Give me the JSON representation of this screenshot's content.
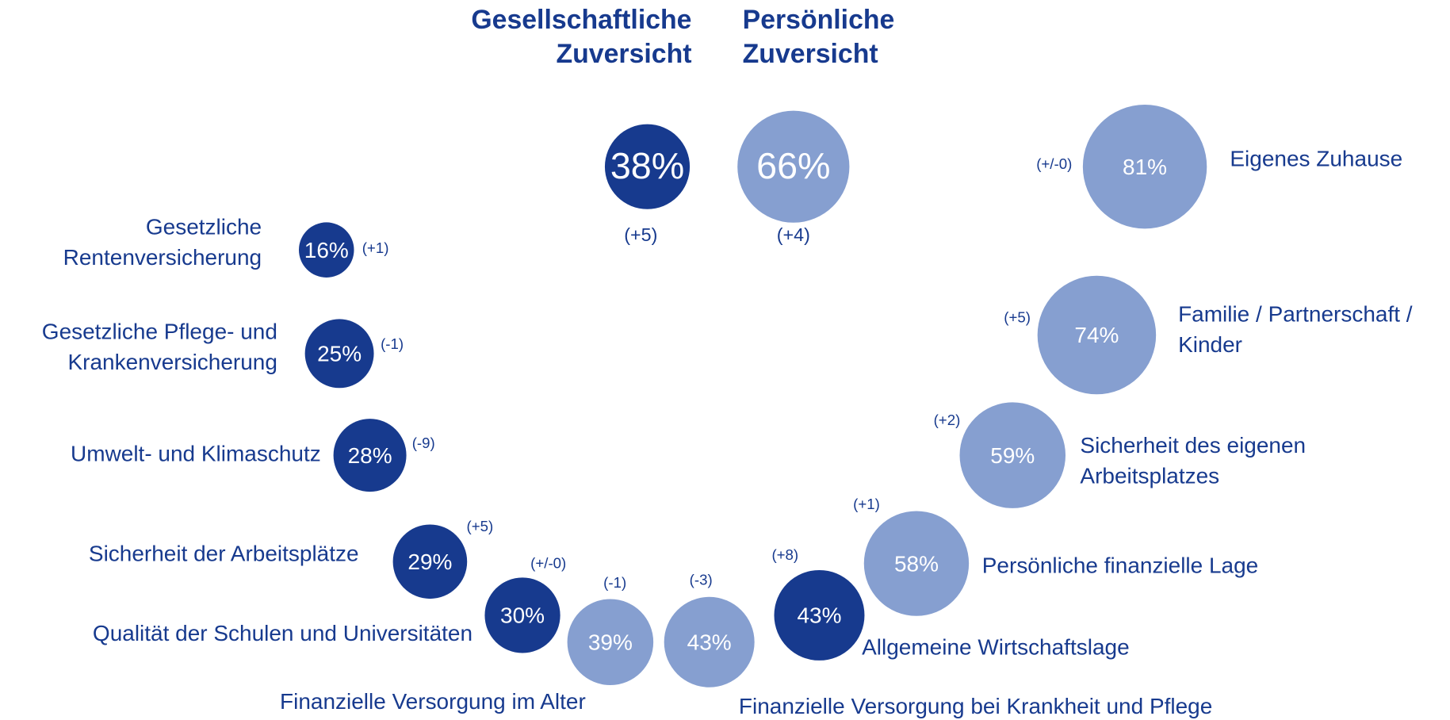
{
  "chart_data": {
    "type": "bubble",
    "headers": [
      [
        "Gesellschaftliche",
        "Zuversicht"
      ],
      [
        "Persönliche",
        "Zuversicht"
      ]
    ],
    "items": [
      {
        "label": [],
        "value": 38,
        "value_label": "38%",
        "change": 5,
        "change_label": "(+5)",
        "color": "#173a8e"
      },
      {
        "label": [],
        "value": 66,
        "value_label": "66%",
        "change": 4,
        "change_label": "(+4)",
        "color": "#869fd0"
      },
      {
        "label": [
          "Eigenes Zuhause"
        ],
        "value": 81,
        "value_label": "81%",
        "change": 0,
        "change_label": "(+/-0)",
        "color": "#869fd0"
      },
      {
        "label": [
          "Familie / Partnerschaft /",
          "Kinder"
        ],
        "value": 74,
        "value_label": "74%",
        "change": 5,
        "change_label": "(+5)",
        "color": "#869fd0"
      },
      {
        "label": [
          "Sicherheit des eigenen",
          "Arbeitsplatzes"
        ],
        "value": 59,
        "value_label": "59%",
        "change": 2,
        "change_label": "(+2)",
        "color": "#869fd0"
      },
      {
        "label": [
          "Persönliche finanzielle Lage"
        ],
        "value": 58,
        "value_label": "58%",
        "change": 1,
        "change_label": "(+1)",
        "color": "#869fd0"
      },
      {
        "label": [
          "Finanzielle Versorgung bei Krankheit und Pflege"
        ],
        "value": 43,
        "value_label": "43%",
        "change": -3,
        "change_label": "(-3)",
        "color": "#869fd0"
      },
      {
        "label": [
          "Finanzielle Versorgung im Alter"
        ],
        "value": 39,
        "value_label": "39%",
        "change": -1,
        "change_label": "(-1)",
        "color": "#869fd0"
      },
      {
        "label": [
          "Gesetzliche",
          "Rentenversicherung"
        ],
        "value": 16,
        "value_label": "16%",
        "change": 1,
        "change_label": "(+1)",
        "color": "#173a8e"
      },
      {
        "label": [
          "Gesetzliche Pflege- und",
          "Krankenversicherung"
        ],
        "value": 25,
        "value_label": "25%",
        "change": -1,
        "change_label": "(-1)",
        "color": "#173a8e"
      },
      {
        "label": [
          "Umwelt- und Klimaschutz"
        ],
        "value": 28,
        "value_label": "28%",
        "change": -9,
        "change_label": "(-9)",
        "color": "#173a8e"
      },
      {
        "label": [
          "Sicherheit der Arbeitsplätze"
        ],
        "value": 29,
        "value_label": "29%",
        "change": 5,
        "change_label": "(+5)",
        "color": "#173a8e"
      },
      {
        "label": [
          "Qualität der Schulen und Universitäten"
        ],
        "value": 30,
        "value_label": "30%",
        "change": 0,
        "change_label": "(+/-0)",
        "color": "#173a8e"
      },
      {
        "label": [
          "Allgemeine Wirtschaftslage"
        ],
        "value": 43,
        "value_label": "43%",
        "change": 8,
        "change_label": "(+8)",
        "color": "#173a8e"
      }
    ]
  }
}
